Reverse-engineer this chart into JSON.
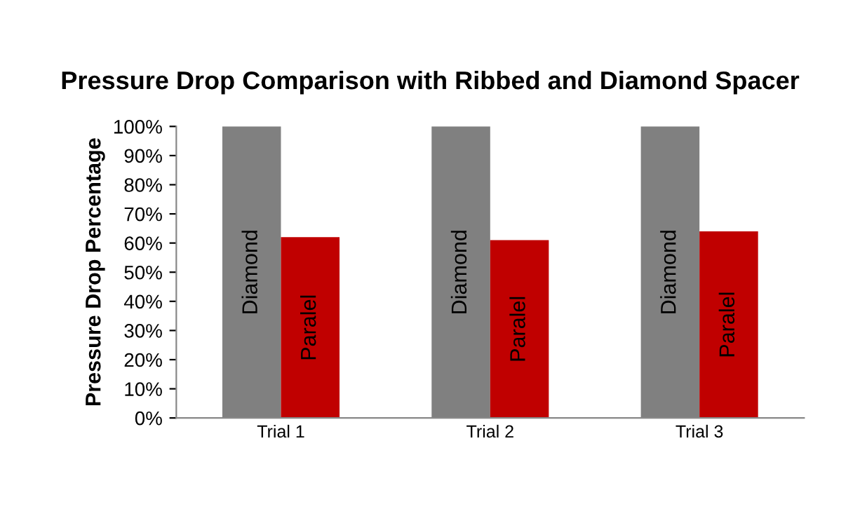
{
  "chart_data": {
    "type": "bar",
    "title": "Pressure Drop Comparison with Ribbed and Diamond Spacer",
    "ylabel": "Pressure Drop Percentage",
    "categories": [
      "Trial 1",
      "Trial 2",
      "Trial 3"
    ],
    "series": [
      {
        "name": "Diamond",
        "color": "#808080",
        "values": [
          100,
          100,
          100
        ]
      },
      {
        "name": "Paralel",
        "color": "#c00000",
        "values": [
          62,
          61,
          64
        ]
      }
    ],
    "ylim": [
      0,
      100
    ],
    "yticks": [
      {
        "value": 0,
        "label": "0%"
      },
      {
        "value": 10,
        "label": "10%"
      },
      {
        "value": 20,
        "label": "20%"
      },
      {
        "value": 30,
        "label": "30%"
      },
      {
        "value": 40,
        "label": "40%"
      },
      {
        "value": 50,
        "label": "50%"
      },
      {
        "value": 60,
        "label": "60%"
      },
      {
        "value": 70,
        "label": "70%"
      },
      {
        "value": 80,
        "label": "80%"
      },
      {
        "value": 90,
        "label": "90%"
      },
      {
        "value": 100,
        "label": "100%"
      }
    ],
    "grid": false,
    "legend": false
  }
}
